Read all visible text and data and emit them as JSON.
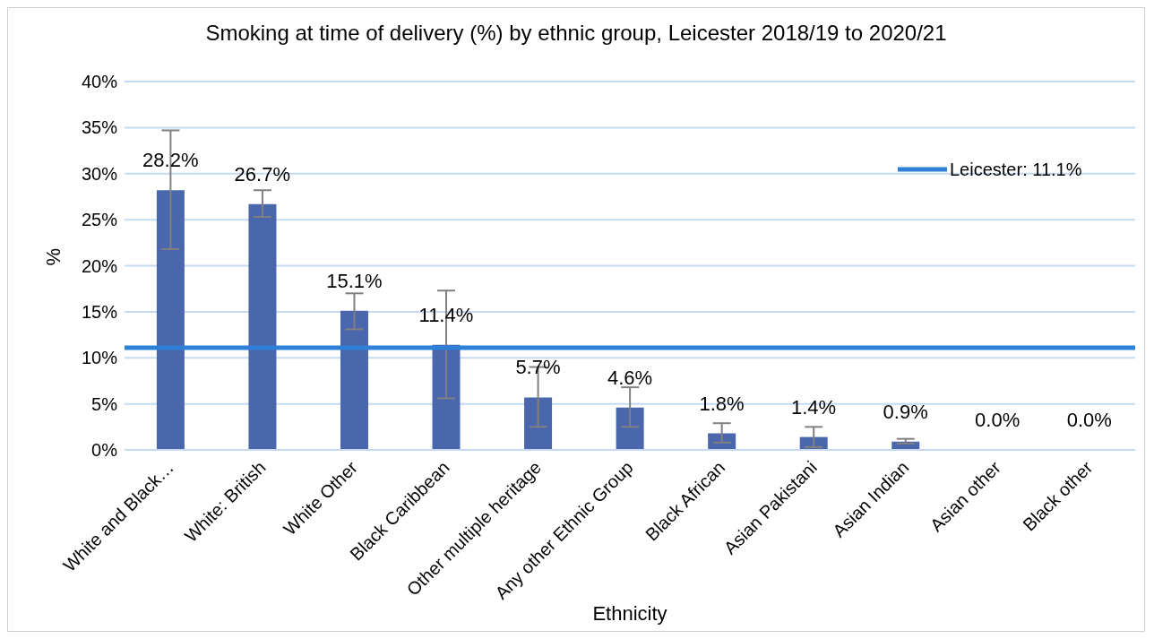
{
  "chart_data": {
    "type": "bar",
    "title": "Smoking at time of delivery (%) by ethnic group, Leicester 2018/19 to 2020/21",
    "xlabel": "Ethnicity",
    "ylabel": "%",
    "categories": [
      "White and Black…",
      "White: British",
      "White Other",
      "Black Caribbean",
      "Other multiple heritage",
      "Any other Ethnic Group",
      "Black African",
      "Asian Pakistani",
      "Asian Indian",
      "Asian other",
      "Black other"
    ],
    "values": [
      28.2,
      26.7,
      15.1,
      11.4,
      5.7,
      4.6,
      1.8,
      1.4,
      0.9,
      0.0,
      0.0
    ],
    "value_labels": [
      "28.2%",
      "26.7%",
      "15.1%",
      "11.4%",
      "5.7%",
      "4.6%",
      "1.8%",
      "1.4%",
      "0.9%",
      "0.0%",
      "0.0%"
    ],
    "errors": [
      [
        21.8,
        34.7
      ],
      [
        25.3,
        28.2
      ],
      [
        13.1,
        17.0
      ],
      [
        5.6,
        17.3
      ],
      [
        2.5,
        9.0
      ],
      [
        2.5,
        6.8
      ],
      [
        0.8,
        2.9
      ],
      [
        0.3,
        2.5
      ],
      [
        0.7,
        1.2
      ],
      null,
      null
    ],
    "color": "#4a66ac",
    "ylim": [
      0,
      40
    ],
    "yticks": [
      {
        "value": 0,
        "label": "0%"
      },
      {
        "value": 5,
        "label": "5%"
      },
      {
        "value": 10,
        "label": "10%"
      },
      {
        "value": 15,
        "label": "15%"
      },
      {
        "value": 20,
        "label": "20%"
      },
      {
        "value": 25,
        "label": "25%"
      },
      {
        "value": 30,
        "label": "30%"
      },
      {
        "value": 35,
        "label": "35%"
      },
      {
        "value": 40,
        "label": "40%"
      }
    ],
    "grid": "y",
    "ref_lines": [
      {
        "axis": "y",
        "value": 11.1,
        "label": "Leicester: 11.1%",
        "color": "#2e7fd6"
      }
    ],
    "legend": "top right"
  }
}
